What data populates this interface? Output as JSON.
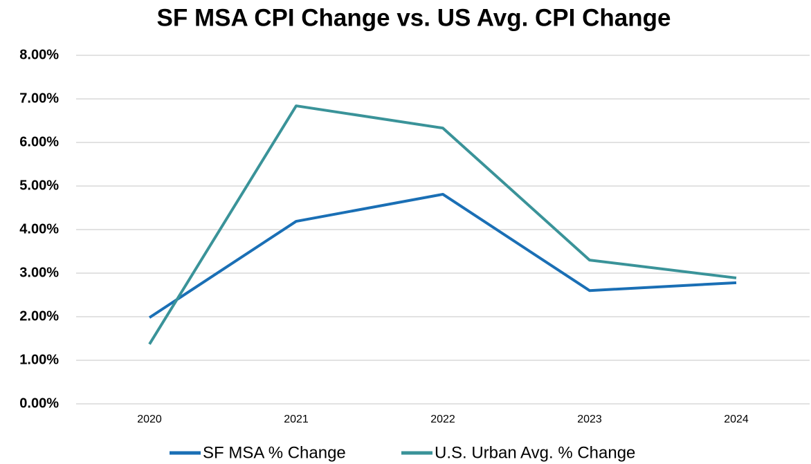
{
  "chart_data": {
    "type": "line",
    "title": "SF MSA CPI Change vs. US Avg. CPI Change",
    "categories": [
      "2020",
      "2021",
      "2022",
      "2023",
      "2024"
    ],
    "series": [
      {
        "name": "SF MSA % Change",
        "color": "#1a6fb5",
        "values": [
          1.98,
          4.19,
          4.81,
          2.6,
          2.78
        ]
      },
      {
        "name": "U.S. Urban Avg. % Change",
        "color": "#3a9399",
        "values": [
          1.37,
          6.84,
          6.33,
          3.3,
          2.89
        ]
      }
    ],
    "ylim": [
      0,
      8
    ],
    "yticks": [
      {
        "value": 0,
        "label": "0.00%"
      },
      {
        "value": 1,
        "label": "1.00%"
      },
      {
        "value": 2,
        "label": "2.00%"
      },
      {
        "value": 3,
        "label": "3.00%"
      },
      {
        "value": 4,
        "label": "4.00%"
      },
      {
        "value": 5,
        "label": "5.00%"
      },
      {
        "value": 6,
        "label": "6.00%"
      },
      {
        "value": 7,
        "label": "7.00%"
      },
      {
        "value": 8,
        "label": "8.00%"
      }
    ],
    "grid": true,
    "legend": "bottom"
  }
}
